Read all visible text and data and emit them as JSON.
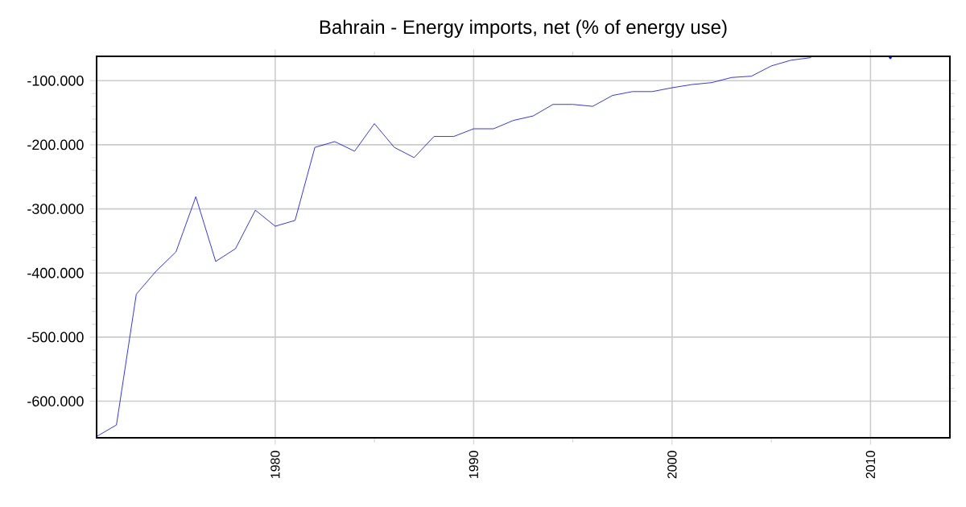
{
  "chart_data": {
    "type": "line",
    "title": "Bahrain - Energy imports, net (% of energy use)",
    "x": [
      1971,
      1972,
      1973,
      1974,
      1975,
      1976,
      1977,
      1978,
      1979,
      1980,
      1981,
      1982,
      1983,
      1984,
      1985,
      1986,
      1987,
      1988,
      1989,
      1990,
      1991,
      1992,
      1993,
      1994,
      1995,
      1996,
      1997,
      1998,
      1999,
      2000,
      2001,
      2002,
      2003,
      2004,
      2005,
      2006,
      2007,
      2008,
      2009,
      2010,
      2011
    ],
    "series": [
      {
        "color": "#0000ff",
        "values": [
          -655,
          -637,
          -433,
          -397,
          -367,
          -281,
          -382,
          -362,
          -302,
          -327,
          -318,
          -204,
          -195,
          -210,
          -167,
          -204,
          -220,
          -187,
          -187,
          -175,
          -175,
          -162,
          -155,
          -137,
          -137,
          -140,
          -123,
          -117,
          -117,
          -111,
          -106,
          -103,
          -95,
          -93,
          -77,
          -68,
          -64,
          null,
          null,
          null,
          -64
        ]
      }
    ],
    "xlim": [
      1971,
      2014
    ],
    "ylim": [
      -657,
      -62
    ],
    "xticks": [
      1980,
      1990,
      2000,
      2010
    ],
    "yticks": [
      {
        "value": -600,
        "label": "-600.000"
      },
      {
        "value": -500,
        "label": "-500.000"
      },
      {
        "value": -400,
        "label": "-400.000"
      },
      {
        "value": -300,
        "label": "-300.000"
      },
      {
        "value": -200,
        "label": "-200.000"
      },
      {
        "value": -100,
        "label": "-100.000"
      }
    ],
    "grid": true,
    "line_style": "solid",
    "marker": "none"
  }
}
